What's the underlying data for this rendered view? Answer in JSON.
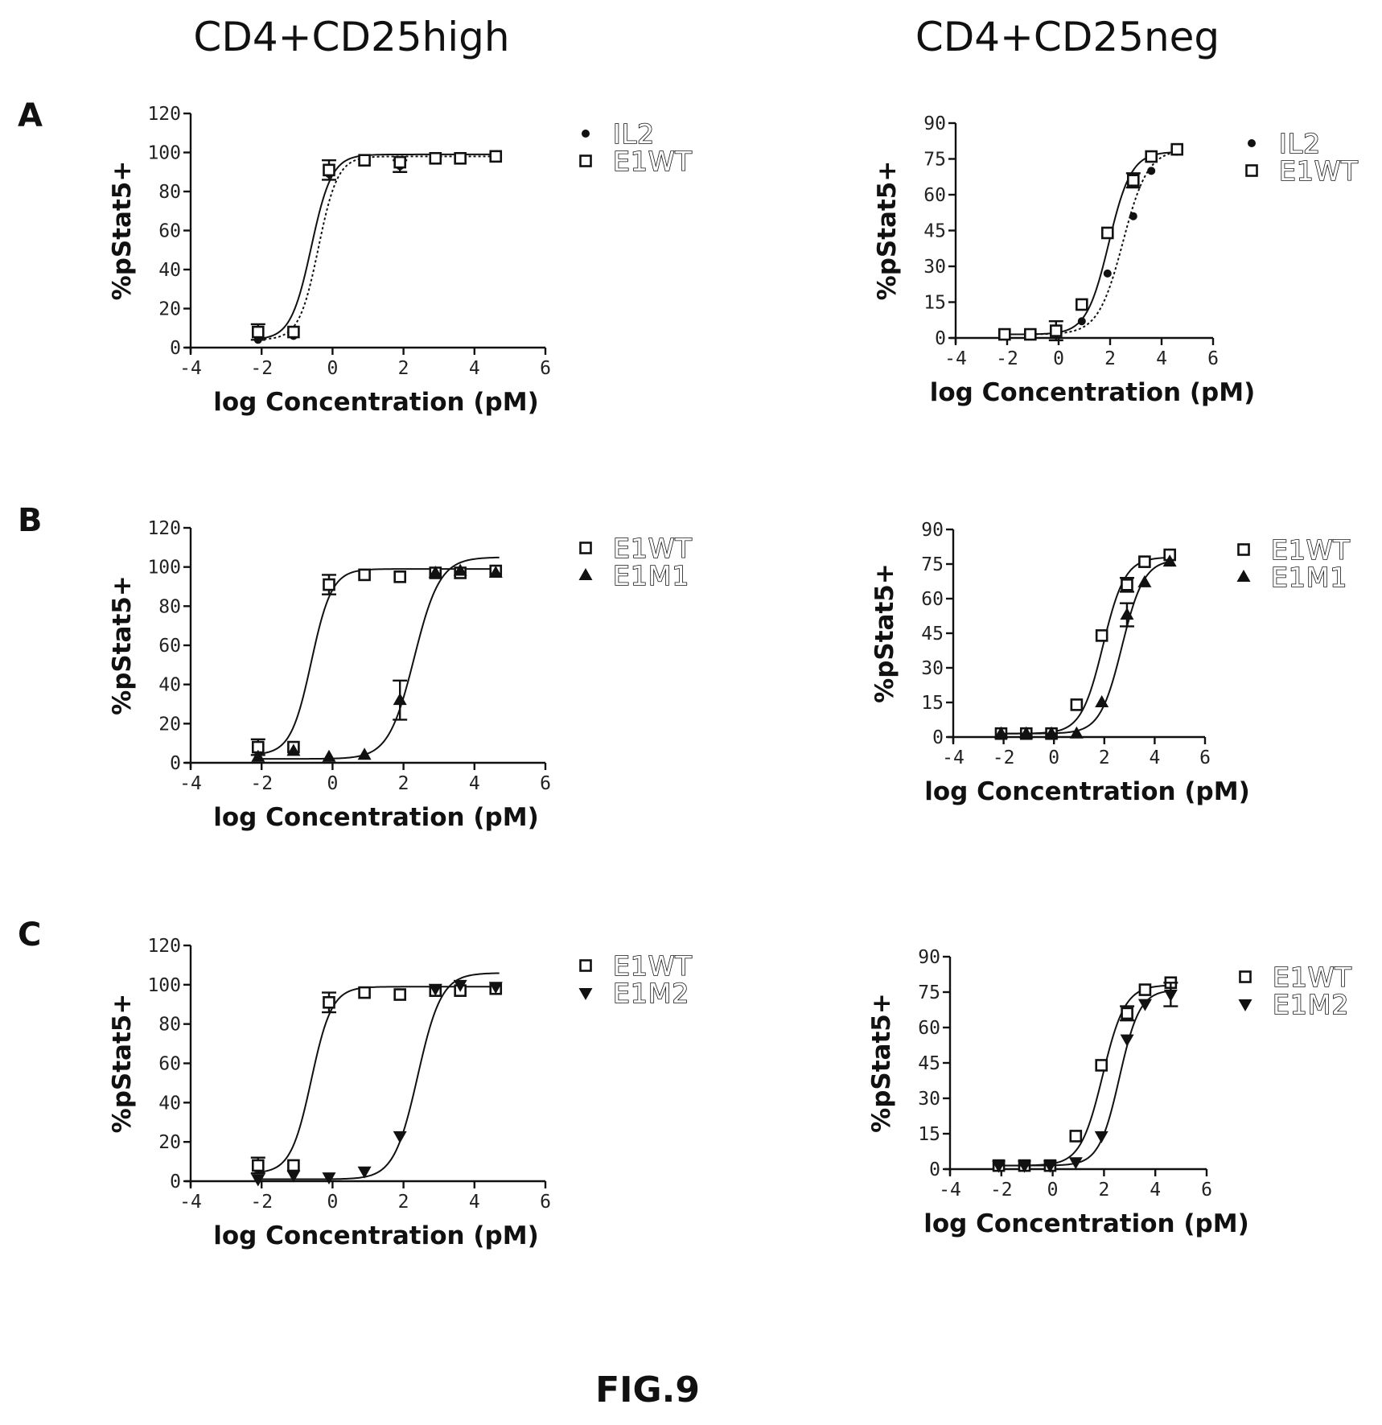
{
  "figure_label": "FIG.9",
  "column_titles": [
    "CD4+CD25high",
    "CD4+CD25neg"
  ],
  "panel_letters": [
    "A",
    "B",
    "C"
  ],
  "colors": {
    "ink": "#111111",
    "background": "#ffffff"
  },
  "chart_data": [
    {
      "type": "scatter",
      "panel": "A",
      "column": "CD4+CD25high",
      "xlabel": "log Concentration (pM)",
      "ylabel": "%pStat5+",
      "xlim": [
        -4,
        6
      ],
      "ylim": [
        0,
        120
      ],
      "xticks": [
        -4,
        -2,
        0,
        2,
        4,
        6
      ],
      "yticks": [
        0,
        20,
        40,
        60,
        80,
        100,
        120
      ],
      "grid": false,
      "legend_position": "top-right",
      "series": [
        {
          "name": "IL2",
          "marker": "circle",
          "curve": "dotted",
          "x": [
            -2.1,
            -1.1,
            -0.1,
            0.9,
            1.9,
            2.9,
            3.6,
            4.6
          ],
          "y": [
            4,
            6,
            89,
            96,
            93,
            97,
            97,
            98
          ],
          "err": [
            0,
            0,
            0,
            0,
            3,
            0,
            0,
            0
          ],
          "fit": {
            "bottom": 4,
            "top": 98,
            "ec50": -0.4,
            "hill": 1.6
          }
        },
        {
          "name": "E1WT",
          "marker": "square-open",
          "curve": "solid",
          "x": [
            -2.1,
            -1.1,
            -0.1,
            0.9,
            1.9,
            2.9,
            3.6,
            4.6
          ],
          "y": [
            8,
            8,
            91,
            96,
            95,
            97,
            97,
            98
          ],
          "err": [
            4,
            0,
            5,
            0,
            0,
            0,
            0,
            0
          ],
          "fit": {
            "bottom": 4,
            "top": 99,
            "ec50": -0.6,
            "hill": 1.5
          }
        }
      ]
    },
    {
      "type": "scatter",
      "panel": "A",
      "column": "CD4+CD25neg",
      "xlabel": "log Concentration (pM)",
      "ylabel": "%pStat5+",
      "xlim": [
        -4,
        6
      ],
      "ylim": [
        0,
        90
      ],
      "xticks": [
        -4,
        -2,
        0,
        2,
        4,
        6
      ],
      "yticks": [
        0,
        15,
        30,
        45,
        60,
        75,
        90
      ],
      "grid": false,
      "legend_position": "top-right",
      "series": [
        {
          "name": "IL2",
          "marker": "circle",
          "curve": "dotted",
          "x": [
            -2.1,
            -1.1,
            -0.1,
            0.9,
            1.9,
            2.9,
            3.6,
            4.6
          ],
          "y": [
            1.5,
            1.5,
            2,
            7,
            27,
            51,
            70,
            78
          ],
          "err": [
            0,
            0,
            0,
            0,
            0,
            0,
            0,
            0
          ],
          "fit": {
            "bottom": 1.5,
            "top": 79,
            "ec50": 2.5,
            "hill": 0.9
          }
        },
        {
          "name": "E1WT",
          "marker": "square-open",
          "curve": "solid",
          "x": [
            -2.1,
            -1.1,
            -0.1,
            0.9,
            1.9,
            2.9,
            3.6,
            4.6
          ],
          "y": [
            1.5,
            1.5,
            3,
            14,
            44,
            66,
            76,
            79
          ],
          "err": [
            0,
            0,
            4,
            0,
            0,
            3,
            0,
            0
          ],
          "fit": {
            "bottom": 1.5,
            "top": 78,
            "ec50": 1.95,
            "hill": 1.0
          }
        }
      ]
    },
    {
      "type": "scatter",
      "panel": "B",
      "column": "CD4+CD25high",
      "xlabel": "log Concentration (pM)",
      "ylabel": "%pStat5+",
      "xlim": [
        -4,
        6
      ],
      "ylim": [
        0,
        120
      ],
      "xticks": [
        -4,
        -2,
        0,
        2,
        4,
        6
      ],
      "yticks": [
        0,
        20,
        40,
        60,
        80,
        100,
        120
      ],
      "grid": false,
      "legend_position": "top-right",
      "series": [
        {
          "name": "E1WT",
          "marker": "square-open",
          "curve": "solid",
          "x": [
            -2.1,
            -1.1,
            -0.1,
            0.9,
            1.9,
            2.9,
            3.6,
            4.6
          ],
          "y": [
            8,
            8,
            91,
            96,
            95,
            97,
            97,
            98
          ],
          "err": [
            4,
            0,
            5,
            0,
            0,
            0,
            0,
            0
          ],
          "fit": {
            "bottom": 4,
            "top": 99,
            "ec50": -0.6,
            "hill": 1.5
          }
        },
        {
          "name": "E1M1",
          "marker": "triangle-up",
          "curve": "solid",
          "x": [
            -2.1,
            -1.1,
            -0.1,
            0.9,
            1.9,
            2.9,
            3.6,
            4.6
          ],
          "y": [
            3,
            6,
            3,
            4,
            32,
            97,
            98,
            97
          ],
          "err": [
            0,
            0,
            0,
            0,
            10,
            0,
            0,
            0
          ],
          "fit": {
            "bottom": 2,
            "top": 105,
            "ec50": 2.3,
            "hill": 1.2
          }
        }
      ]
    },
    {
      "type": "scatter",
      "panel": "B",
      "column": "CD4+CD25neg",
      "xlabel": "log Concentration (pM)",
      "ylabel": "%pStat5+",
      "xlim": [
        -4,
        6
      ],
      "ylim": [
        0,
        90
      ],
      "xticks": [
        -4,
        -2,
        0,
        2,
        4,
        6
      ],
      "yticks": [
        0,
        15,
        30,
        45,
        60,
        75,
        90
      ],
      "grid": false,
      "legend_position": "top-right",
      "series": [
        {
          "name": "E1WT",
          "marker": "square-open",
          "curve": "solid",
          "x": [
            -2.1,
            -1.1,
            -0.1,
            0.9,
            1.9,
            2.9,
            3.6,
            4.6
          ],
          "y": [
            1.5,
            1.5,
            1.5,
            14,
            44,
            66,
            76,
            79
          ],
          "err": [
            0,
            0,
            0,
            0,
            0,
            3,
            0,
            0
          ],
          "fit": {
            "bottom": 1.5,
            "top": 78,
            "ec50": 1.95,
            "hill": 1.0
          }
        },
        {
          "name": "E1M1",
          "marker": "triangle-up",
          "curve": "solid",
          "x": [
            -2.1,
            -1.1,
            -0.1,
            0.9,
            1.9,
            2.9,
            3.6,
            4.6
          ],
          "y": [
            1.5,
            1.5,
            1.5,
            1.5,
            15,
            53,
            67,
            76
          ],
          "err": [
            0,
            0,
            0,
            0,
            0,
            5,
            0,
            0
          ],
          "fit": {
            "bottom": 1.5,
            "top": 77,
            "ec50": 2.7,
            "hill": 1.0
          }
        }
      ]
    },
    {
      "type": "scatter",
      "panel": "C",
      "column": "CD4+CD25high",
      "xlabel": "log Concentration (pM)",
      "ylabel": "%pStat5+",
      "xlim": [
        -4,
        6
      ],
      "ylim": [
        0,
        120
      ],
      "xticks": [
        -4,
        -2,
        0,
        2,
        4,
        6
      ],
      "yticks": [
        0,
        20,
        40,
        60,
        80,
        100,
        120
      ],
      "grid": false,
      "legend_position": "top-right",
      "series": [
        {
          "name": "E1WT",
          "marker": "square-open",
          "curve": "solid",
          "x": [
            -2.1,
            -1.1,
            -0.1,
            0.9,
            1.9,
            2.9,
            3.6,
            4.6
          ],
          "y": [
            8,
            8,
            91,
            96,
            95,
            97,
            97,
            98
          ],
          "err": [
            4,
            0,
            5,
            0,
            0,
            0,
            0,
            0
          ],
          "fit": {
            "bottom": 4,
            "top": 99,
            "ec50": -0.6,
            "hill": 1.5
          }
        },
        {
          "name": "E1M2",
          "marker": "triangle-down",
          "curve": "solid",
          "x": [
            -2.1,
            -1.1,
            -0.1,
            0.9,
            1.9,
            2.9,
            3.6,
            4.6
          ],
          "y": [
            1,
            3,
            2,
            5,
            23,
            98,
            100,
            99
          ],
          "err": [
            0,
            0,
            0,
            0,
            0,
            0,
            0,
            0
          ],
          "fit": {
            "bottom": 1,
            "top": 106,
            "ec50": 2.4,
            "hill": 1.3
          }
        }
      ]
    },
    {
      "type": "scatter",
      "panel": "C",
      "column": "CD4+CD25neg",
      "xlabel": "log Concentration (pM)",
      "ylabel": "%pStat5+",
      "xlim": [
        -4,
        6
      ],
      "ylim": [
        0,
        90
      ],
      "xticks": [
        -4,
        -2,
        0,
        2,
        4,
        6
      ],
      "yticks": [
        0,
        15,
        30,
        45,
        60,
        75,
        90
      ],
      "grid": false,
      "legend_position": "top-right",
      "series": [
        {
          "name": "E1WT",
          "marker": "square-open",
          "curve": "solid",
          "x": [
            -2.1,
            -1.1,
            -0.1,
            0.9,
            1.9,
            2.9,
            3.6,
            4.6
          ],
          "y": [
            1.5,
            1.5,
            1.5,
            14,
            44,
            66,
            76,
            79
          ],
          "err": [
            0,
            0,
            0,
            0,
            0,
            3,
            0,
            0
          ],
          "fit": {
            "bottom": 1.5,
            "top": 78,
            "ec50": 1.95,
            "hill": 1.0
          }
        },
        {
          "name": "E1M2",
          "marker": "triangle-down",
          "curve": "solid",
          "x": [
            -2.1,
            -1.1,
            -0.1,
            0.9,
            1.9,
            2.9,
            3.6,
            4.6
          ],
          "y": [
            1.5,
            1.5,
            1.5,
            3,
            14,
            55,
            70,
            74
          ],
          "err": [
            0,
            0,
            0,
            0,
            0,
            0,
            0,
            5
          ],
          "fit": {
            "bottom": 1.5,
            "top": 76,
            "ec50": 2.6,
            "hill": 1.1
          }
        }
      ]
    }
  ]
}
